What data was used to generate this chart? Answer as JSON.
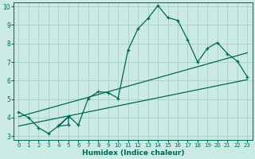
{
  "xlabel": "Humidex (Indice chaleur)",
  "bg_color": "#cceae4",
  "grid_color": "#aad4cc",
  "line_color": "#006655",
  "xlim": [
    -0.5,
    23.5
  ],
  "ylim": [
    2.8,
    10.2
  ],
  "xticks": [
    0,
    1,
    2,
    3,
    4,
    5,
    6,
    7,
    8,
    9,
    10,
    11,
    12,
    13,
    14,
    15,
    16,
    17,
    18,
    19,
    20,
    21,
    22,
    23
  ],
  "yticks": [
    3,
    4,
    5,
    6,
    7,
    8,
    9,
    10
  ],
  "curve1_x": [
    0,
    1,
    2,
    3,
    4,
    5,
    4,
    5,
    5,
    6,
    7,
    8,
    9,
    10,
    11,
    12,
    13,
    14,
    15,
    16,
    17,
    18,
    19,
    20,
    21,
    22,
    23
  ],
  "curve1_y": [
    4.3,
    4.0,
    3.45,
    3.15,
    3.55,
    4.05,
    3.55,
    3.6,
    4.1,
    3.6,
    5.05,
    5.4,
    5.35,
    5.05,
    7.65,
    8.8,
    9.35,
    10.05,
    9.4,
    9.25,
    8.2,
    7.0,
    7.75,
    8.05,
    7.45,
    7.05,
    6.2
  ],
  "line1_x": [
    0,
    23
  ],
  "line1_y": [
    3.55,
    6.05
  ],
  "line2_x": [
    0,
    23
  ],
  "line2_y": [
    4.05,
    7.5
  ]
}
